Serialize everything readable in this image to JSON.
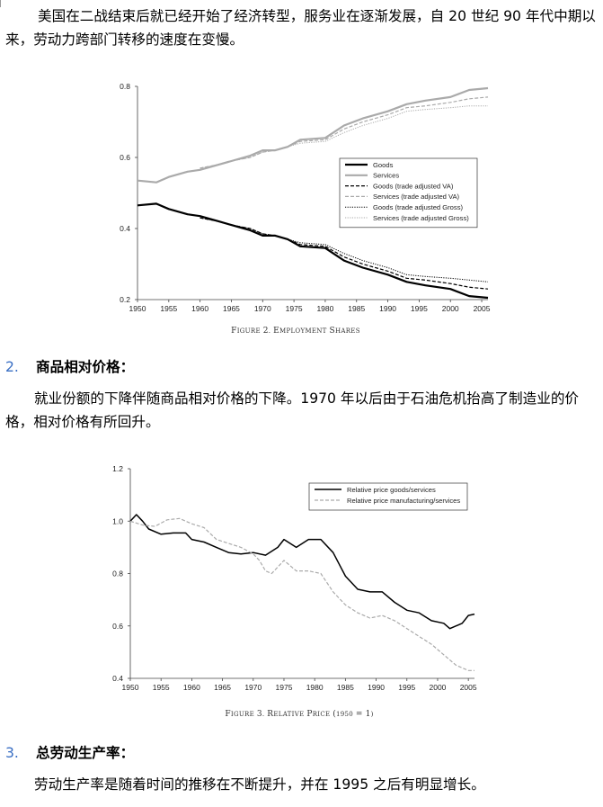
{
  "paragraph_1": "美国在二战结束后就已经开始了经济转型，服务业在逐渐发展，自 20 世纪 90 年代中期以来，劳动力跨部门转移的速度在变慢。",
  "section_2": {
    "number": "2.",
    "title": "商品相对价格："
  },
  "paragraph_2": "就业份额的下降伴随商品相对价格的下降。1970 年以后由于石油危机抬高了制造业的价格，相对价格有所回升。",
  "section_3": {
    "number": "3.",
    "title": "总劳动生产率："
  },
  "paragraph_3": "劳动生产率是随着时间的推移在不断提升，并在 1995 之后有明显增长。",
  "chart_data": [
    {
      "type": "line",
      "caption": "Figure 2. Employment Shares",
      "xlabel": "",
      "ylabel": "",
      "xlim": [
        1950,
        2006
      ],
      "ylim": [
        0.2,
        0.8
      ],
      "xticks": [
        1950,
        1955,
        1960,
        1965,
        1970,
        1975,
        1980,
        1985,
        1990,
        1995,
        2000,
        2005
      ],
      "yticks": [
        0.2,
        0.4,
        0.6,
        0.8
      ],
      "ytick_labels": [
        "0.2",
        "0.4",
        "0.6",
        "0.8"
      ],
      "legend_position": "right",
      "series": [
        {
          "name": "Goods",
          "style": "solid-thick",
          "color": "#000000",
          "x": [
            1950,
            1953,
            1955,
            1958,
            1960,
            1963,
            1965,
            1968,
            1970,
            1972,
            1974,
            1976,
            1980,
            1983,
            1986,
            1990,
            1993,
            1996,
            2000,
            2003,
            2006
          ],
          "y": [
            0.465,
            0.47,
            0.455,
            0.44,
            0.435,
            0.42,
            0.41,
            0.395,
            0.38,
            0.38,
            0.37,
            0.35,
            0.345,
            0.31,
            0.29,
            0.27,
            0.25,
            0.24,
            0.23,
            0.21,
            0.205
          ]
        },
        {
          "name": "Services",
          "style": "solid-thick",
          "color": "#aaaaaa",
          "x": [
            1950,
            1953,
            1955,
            1958,
            1960,
            1963,
            1965,
            1968,
            1970,
            1972,
            1974,
            1976,
            1980,
            1983,
            1986,
            1990,
            1993,
            1996,
            2000,
            2003,
            2006
          ],
          "y": [
            0.535,
            0.53,
            0.545,
            0.56,
            0.565,
            0.58,
            0.59,
            0.605,
            0.62,
            0.62,
            0.63,
            0.65,
            0.655,
            0.69,
            0.71,
            0.73,
            0.75,
            0.76,
            0.77,
            0.79,
            0.795
          ]
        },
        {
          "name": "Goods (trade adjusted VA)",
          "style": "dashed",
          "color": "#000000",
          "x": [
            1960,
            1963,
            1965,
            1968,
            1970,
            1972,
            1974,
            1976,
            1980,
            1983,
            1986,
            1990,
            1993,
            1996,
            2000,
            2003,
            2006
          ],
          "y": [
            0.43,
            0.42,
            0.41,
            0.4,
            0.385,
            0.38,
            0.37,
            0.355,
            0.35,
            0.32,
            0.3,
            0.28,
            0.26,
            0.255,
            0.245,
            0.235,
            0.23
          ]
        },
        {
          "name": "Services (trade adjusted VA)",
          "style": "dashed",
          "color": "#aaaaaa",
          "x": [
            1960,
            1963,
            1965,
            1968,
            1970,
            1972,
            1974,
            1976,
            1980,
            1983,
            1986,
            1990,
            1993,
            1996,
            2000,
            2003,
            2006
          ],
          "y": [
            0.57,
            0.58,
            0.59,
            0.6,
            0.615,
            0.62,
            0.63,
            0.645,
            0.65,
            0.68,
            0.7,
            0.72,
            0.74,
            0.745,
            0.755,
            0.765,
            0.77
          ]
        },
        {
          "name": "Goods (trade adjusted Gross)",
          "style": "dotted",
          "color": "#000000",
          "x": [
            1960,
            1963,
            1965,
            1968,
            1970,
            1972,
            1974,
            1976,
            1980,
            1983,
            1986,
            1990,
            1993,
            1996,
            2000,
            2003,
            2006
          ],
          "y": [
            0.43,
            0.42,
            0.41,
            0.4,
            0.385,
            0.38,
            0.37,
            0.36,
            0.355,
            0.33,
            0.31,
            0.29,
            0.27,
            0.265,
            0.26,
            0.255,
            0.25
          ]
        },
        {
          "name": "Services (trade adjusted Gross)",
          "style": "dotted",
          "color": "#aaaaaa",
          "x": [
            1960,
            1963,
            1965,
            1968,
            1970,
            1972,
            1974,
            1976,
            1980,
            1983,
            1986,
            1990,
            1993,
            1996,
            2000,
            2003,
            2006
          ],
          "y": [
            0.57,
            0.58,
            0.59,
            0.6,
            0.615,
            0.62,
            0.63,
            0.64,
            0.645,
            0.67,
            0.69,
            0.71,
            0.73,
            0.735,
            0.74,
            0.745,
            0.745
          ]
        }
      ]
    },
    {
      "type": "line",
      "caption": "Figure 3. Relative Price (1950 = 1)",
      "xlabel": "",
      "ylabel": "",
      "xlim": [
        1950,
        2006
      ],
      "ylim": [
        0.4,
        1.2
      ],
      "xticks": [
        1950,
        1955,
        1960,
        1965,
        1970,
        1975,
        1980,
        1985,
        1990,
        1995,
        2000,
        2005
      ],
      "yticks": [
        0.4,
        0.6,
        0.8,
        1.0,
        1.2
      ],
      "ytick_labels": [
        "0.4",
        "0.6",
        "0.8",
        "1.0",
        "1.2"
      ],
      "legend_position": "top-right",
      "series": [
        {
          "name": "Relative price goods/services",
          "style": "solid",
          "color": "#000000",
          "x": [
            1950,
            1951,
            1952,
            1953,
            1955,
            1957,
            1959,
            1960,
            1962,
            1964,
            1966,
            1968,
            1970,
            1972,
            1974,
            1975,
            1977,
            1979,
            1981,
            1983,
            1985,
            1987,
            1989,
            1991,
            1993,
            1995,
            1997,
            1999,
            2001,
            2002,
            2004,
            2005,
            2006
          ],
          "y": [
            1.0,
            1.025,
            1.0,
            0.97,
            0.95,
            0.955,
            0.955,
            0.93,
            0.92,
            0.9,
            0.88,
            0.875,
            0.88,
            0.87,
            0.9,
            0.93,
            0.9,
            0.93,
            0.93,
            0.88,
            0.79,
            0.74,
            0.73,
            0.73,
            0.69,
            0.66,
            0.65,
            0.62,
            0.61,
            0.59,
            0.61,
            0.64,
            0.645
          ]
        },
        {
          "name": "Relative price manufacturing/services",
          "style": "dashed",
          "color": "#aaaaaa",
          "x": [
            1950,
            1952,
            1954,
            1956,
            1958,
            1960,
            1962,
            1964,
            1966,
            1968,
            1970,
            1971,
            1972,
            1973,
            1975,
            1977,
            1979,
            1981,
            1983,
            1985,
            1987,
            1989,
            1991,
            1993,
            1995,
            1997,
            1999,
            2001,
            2003,
            2005,
            2006
          ],
          "y": [
            1.0,
            0.985,
            0.98,
            1.005,
            1.01,
            0.99,
            0.975,
            0.93,
            0.915,
            0.9,
            0.875,
            0.85,
            0.81,
            0.8,
            0.85,
            0.81,
            0.81,
            0.8,
            0.73,
            0.68,
            0.65,
            0.63,
            0.64,
            0.62,
            0.59,
            0.56,
            0.53,
            0.49,
            0.45,
            0.43,
            0.43
          ]
        }
      ]
    }
  ]
}
